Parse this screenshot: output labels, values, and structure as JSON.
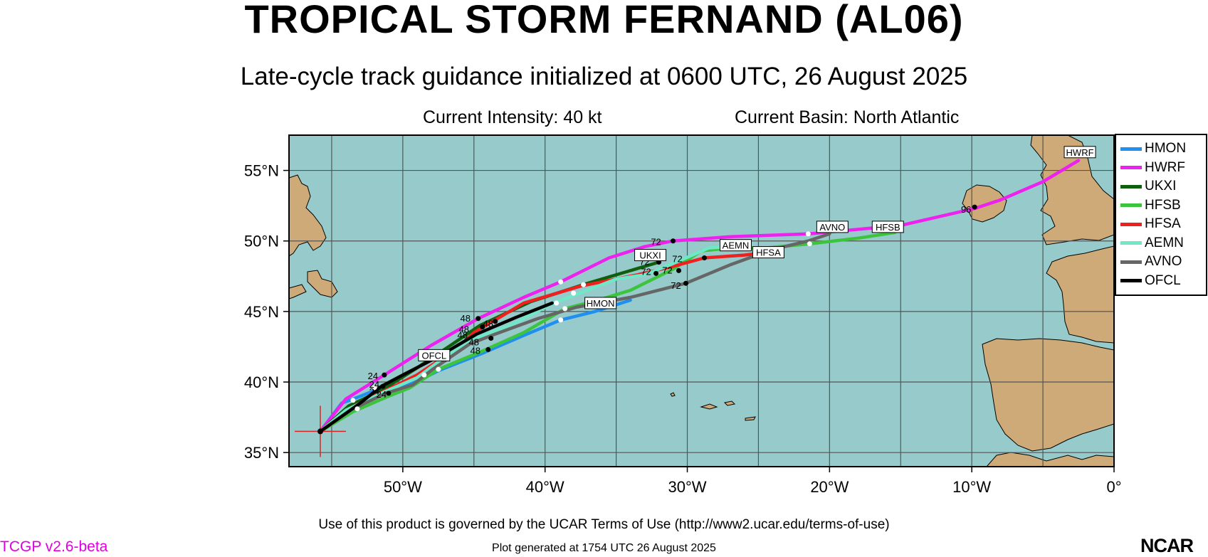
{
  "title": "TROPICAL STORM FERNAND (AL06)",
  "subtitle": "Late-cycle track guidance initialized at 0600 UTC, 26 August 2025",
  "current_intensity": "Current Intensity: 40 kt",
  "current_basin": "Current Basin: North Atlantic",
  "footer_terms": "Use of this product is governed by the UCAR Terms of Use (http://www2.ucar.edu/terms-of-use)",
  "version": "TCGP v2.6-beta",
  "generated": "Plot generated at 1754 UTC   26 August 2025",
  "logo_text": "NCAR",
  "colors": {
    "ocean": "#97cbcb",
    "land": "#cdaa78",
    "grid": "#555555",
    "current_position_marker": "#dd2222"
  },
  "legend": {
    "placement": "right, outside map",
    "items": [
      {
        "label": "HMON",
        "color": "#2090f0"
      },
      {
        "label": "HWRF",
        "color": "#ee22ee"
      },
      {
        "label": "UKXI",
        "color": "#0f5f0f"
      },
      {
        "label": "HFSB",
        "color": "#3cc43c"
      },
      {
        "label": "HFSA",
        "color": "#ee2020"
      },
      {
        "label": "AEMN",
        "color": "#70e8c8"
      },
      {
        "label": "AVNO",
        "color": "#666666"
      },
      {
        "label": "OFCL",
        "color": "#000000"
      }
    ]
  },
  "chart_data": {
    "type": "map",
    "xlim": [
      -58,
      0
    ],
    "ylim": [
      34,
      57.5
    ],
    "x_ticks": [
      {
        "value": -50,
        "label": "50°W"
      },
      {
        "value": -40,
        "label": "40°W"
      },
      {
        "value": -30,
        "label": "30°W"
      },
      {
        "value": -20,
        "label": "20°W"
      },
      {
        "value": -10,
        "label": "10°W"
      },
      {
        "value": 0,
        "label": "0°"
      }
    ],
    "y_ticks": [
      {
        "value": 35,
        "label": "35°N"
      },
      {
        "value": 40,
        "label": "40°N"
      },
      {
        "value": 45,
        "label": "45°N"
      },
      {
        "value": 50,
        "label": "50°N"
      },
      {
        "value": 55,
        "label": "55°N"
      }
    ],
    "grid": true,
    "initial_position": {
      "lon": -55.8,
      "lat": 36.5
    },
    "series": [
      {
        "name": "HMON",
        "color": "#2090f0",
        "points": [
          [
            -55.8,
            36.5
          ],
          [
            -54.3,
            38.5
          ],
          [
            -53.2,
            38.9
          ],
          [
            -51.5,
            39.6
          ],
          [
            -49.8,
            39.8
          ],
          [
            -48.5,
            40.3
          ],
          [
            -47.5,
            40.8
          ],
          [
            -44.5,
            42.0
          ],
          [
            -41.5,
            43.3
          ],
          [
            -38.9,
            44.4
          ],
          [
            -36.5,
            45.0
          ],
          [
            -34.0,
            45.8
          ]
        ],
        "label": {
          "text": "HMON",
          "lon": -36.1,
          "lat": 45.6
        }
      },
      {
        "name": "HWRF",
        "color": "#ee22ee",
        "points": [
          [
            -55.8,
            36.5
          ],
          [
            -54.0,
            38.8
          ],
          [
            -51.3,
            40.5
          ],
          [
            -48.0,
            42.6
          ],
          [
            -44.7,
            44.5
          ],
          [
            -41.5,
            46.0
          ],
          [
            -38.9,
            47.1
          ],
          [
            -35.5,
            48.8
          ],
          [
            -33.0,
            49.6
          ],
          [
            -31.0,
            50.0
          ],
          [
            -27.0,
            50.3
          ],
          [
            -21.5,
            50.5
          ],
          [
            -15.0,
            51.1
          ],
          [
            -9.8,
            52.3
          ],
          [
            -8.0,
            52.9
          ],
          [
            -5.0,
            54.2
          ],
          [
            -2.5,
            55.7
          ]
        ],
        "label": {
          "text": "HWRF",
          "lon": -2.4,
          "lat": 56.3
        }
      },
      {
        "name": "UKXI",
        "color": "#0f5f0f",
        "points": [
          [
            -55.8,
            36.5
          ],
          [
            -53.8,
            38.3
          ],
          [
            -51.5,
            39.4
          ],
          [
            -49.0,
            41.0
          ],
          [
            -46.2,
            42.9
          ],
          [
            -44.6,
            44.0
          ],
          [
            -41.0,
            45.7
          ],
          [
            -37.0,
            47.0
          ],
          [
            -34.0,
            47.9
          ],
          [
            -32.0,
            48.5
          ]
        ],
        "label": {
          "text": "UKXI",
          "lon": -32.6,
          "lat": 49.0
        }
      },
      {
        "name": "HFSB",
        "color": "#3cc43c",
        "points": [
          [
            -55.8,
            36.5
          ],
          [
            -53.5,
            37.9
          ],
          [
            -51.0,
            39.0
          ],
          [
            -49.5,
            39.6
          ],
          [
            -47.5,
            40.9
          ],
          [
            -44.4,
            42.2
          ],
          [
            -41.5,
            43.5
          ],
          [
            -38.6,
            45.2
          ],
          [
            -36.3,
            45.8
          ],
          [
            -34.0,
            46.5
          ],
          [
            -31.0,
            48.0
          ],
          [
            -29.0,
            49.3
          ],
          [
            -27.0,
            49.5
          ],
          [
            -24.5,
            49.5
          ],
          [
            -21.4,
            49.8
          ],
          [
            -18.0,
            50.2
          ],
          [
            -15.4,
            50.6
          ]
        ],
        "label": {
          "text": "HFSB",
          "lon": -15.9,
          "lat": 51.0
        }
      },
      {
        "name": "HFSA",
        "color": "#ee2020",
        "points": [
          [
            -55.8,
            36.5
          ],
          [
            -53.6,
            38.2
          ],
          [
            -51.0,
            39.5
          ],
          [
            -49.0,
            40.5
          ],
          [
            -46.3,
            42.3
          ],
          [
            -45.0,
            43.5
          ],
          [
            -41.5,
            45.6
          ],
          [
            -37.5,
            46.8
          ],
          [
            -33.5,
            47.6
          ],
          [
            -31.0,
            48.2
          ],
          [
            -28.8,
            48.8
          ],
          [
            -26.0,
            49.0
          ],
          [
            -23.5,
            49.3
          ]
        ],
        "label": {
          "text": "HFSA",
          "lon": -24.3,
          "lat": 49.2
        }
      },
      {
        "name": "AEMN",
        "color": "#70e8c8",
        "points": [
          [
            -55.8,
            36.5
          ],
          [
            -54.0,
            38.0
          ],
          [
            -51.3,
            39.3
          ],
          [
            -49.0,
            40.3
          ],
          [
            -47.0,
            41.8
          ],
          [
            -45.3,
            43.0
          ],
          [
            -42.5,
            44.0
          ],
          [
            -39.4,
            45.6
          ],
          [
            -37.3,
            46.4
          ],
          [
            -35.0,
            47.3
          ],
          [
            -33.0,
            47.6
          ],
          [
            -31.0,
            48.4
          ],
          [
            -28.5,
            49.5
          ],
          [
            -27.0,
            49.6
          ]
        ],
        "label": {
          "text": "AEMN",
          "lon": -26.6,
          "lat": 49.7
        }
      },
      {
        "name": "AVNO",
        "color": "#666666",
        "points": [
          [
            -55.8,
            36.5
          ],
          [
            -53.5,
            38.1
          ],
          [
            -51.2,
            39.2
          ],
          [
            -49.3,
            39.8
          ],
          [
            -47.9,
            40.9
          ],
          [
            -45.3,
            42.7
          ],
          [
            -43.5,
            43.4
          ],
          [
            -40.5,
            44.5
          ],
          [
            -37.8,
            45.3
          ],
          [
            -34.0,
            46.0
          ],
          [
            -30.1,
            47.0
          ],
          [
            -27.0,
            48.3
          ],
          [
            -24.0,
            49.4
          ],
          [
            -21.5,
            50.0
          ],
          [
            -20.0,
            50.5
          ]
        ],
        "label": {
          "text": "AVNO",
          "lon": -19.8,
          "lat": 51.0
        }
      },
      {
        "name": "OFCL",
        "color": "#000000",
        "points": [
          [
            -55.8,
            36.5
          ],
          [
            -53.0,
            38.5
          ],
          [
            -51.5,
            39.7
          ],
          [
            -50.0,
            40.5
          ],
          [
            -47.5,
            41.8
          ],
          [
            -44.8,
            43.4
          ],
          [
            -42.0,
            44.6
          ],
          [
            -39.5,
            45.6
          ]
        ],
        "label": {
          "text": "OFCL",
          "lon": -47.8,
          "lat": 41.9
        }
      }
    ],
    "hour_labels": [
      {
        "text": "24",
        "lon": -52.1,
        "lat": 40.2
      },
      {
        "text": "24",
        "lon": -52.0,
        "lat": 39.6
      },
      {
        "text": "24",
        "lon": -52.0,
        "lat": 39.1
      },
      {
        "text": "24",
        "lon": -51.5,
        "lat": 38.9
      },
      {
        "text": "48",
        "lon": -45.6,
        "lat": 44.3
      },
      {
        "text": "48",
        "lon": -45.7,
        "lat": 43.5
      },
      {
        "text": "48",
        "lon": -45.8,
        "lat": 43.1
      },
      {
        "text": "48",
        "lon": -45.0,
        "lat": 42.6
      },
      {
        "text": "48",
        "lon": -44.9,
        "lat": 42.0
      },
      {
        "text": "48",
        "lon": -44.0,
        "lat": 43.9
      },
      {
        "text": "72",
        "lon": -32.2,
        "lat": 49.7
      },
      {
        "text": "72",
        "lon": -33.0,
        "lat": 48.3
      },
      {
        "text": "72",
        "lon": -30.7,
        "lat": 48.5
      },
      {
        "text": "72",
        "lon": -32.9,
        "lat": 47.6
      },
      {
        "text": "72",
        "lon": -31.4,
        "lat": 47.7
      },
      {
        "text": "72",
        "lon": -30.8,
        "lat": 46.6
      },
      {
        "text": "96",
        "lon": -10.4,
        "lat": 52.0
      }
    ],
    "position_dots": [
      {
        "lon": -51.3,
        "lat": 40.5,
        "color": "#000"
      },
      {
        "lon": -51.4,
        "lat": 39.7,
        "color": "#000"
      },
      {
        "lon": -51.0,
        "lat": 39.2,
        "color": "#000"
      },
      {
        "lon": -52.0,
        "lat": 39.6,
        "color": "#fff"
      },
      {
        "lon": -53.5,
        "lat": 38.7,
        "color": "#fff"
      },
      {
        "lon": -53.2,
        "lat": 38.1,
        "color": "#fff"
      },
      {
        "lon": -48.5,
        "lat": 40.5,
        "color": "#fff"
      },
      {
        "lon": -47.5,
        "lat": 40.9,
        "color": "#fff"
      },
      {
        "lon": -44.7,
        "lat": 44.5,
        "color": "#000"
      },
      {
        "lon": -44.4,
        "lat": 43.9,
        "color": "#000"
      },
      {
        "lon": -43.8,
        "lat": 43.1,
        "color": "#000"
      },
      {
        "lon": -44.0,
        "lat": 42.3,
        "color": "#000"
      },
      {
        "lon": -43.5,
        "lat": 44.3,
        "color": "#000"
      },
      {
        "lon": -38.9,
        "lat": 47.1,
        "color": "#fff"
      },
      {
        "lon": -38.0,
        "lat": 46.3,
        "color": "#fff"
      },
      {
        "lon": -37.3,
        "lat": 46.9,
        "color": "#fff"
      },
      {
        "lon": -39.2,
        "lat": 45.6,
        "color": "#fff"
      },
      {
        "lon": -38.6,
        "lat": 45.2,
        "color": "#fff"
      },
      {
        "lon": -38.9,
        "lat": 44.4,
        "color": "#fff"
      },
      {
        "lon": -31.0,
        "lat": 50.0,
        "color": "#000"
      },
      {
        "lon": -32.0,
        "lat": 48.5,
        "color": "#000"
      },
      {
        "lon": -30.6,
        "lat": 47.9,
        "color": "#000"
      },
      {
        "lon": -32.2,
        "lat": 47.7,
        "color": "#000"
      },
      {
        "lon": -30.1,
        "lat": 47.0,
        "color": "#000"
      },
      {
        "lon": -28.8,
        "lat": 48.8,
        "color": "#000"
      },
      {
        "lon": -21.5,
        "lat": 50.5,
        "color": "#fff"
      },
      {
        "lon": -21.4,
        "lat": 49.8,
        "color": "#fff"
      },
      {
        "lon": -9.8,
        "lat": 52.4,
        "color": "#000"
      }
    ]
  }
}
